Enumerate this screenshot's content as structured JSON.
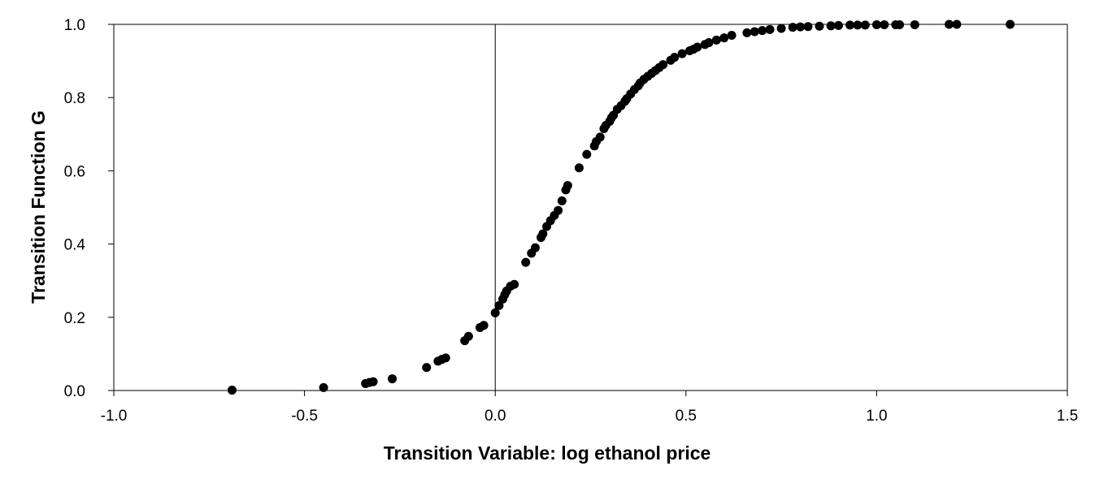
{
  "chart_data": {
    "type": "scatter",
    "title": "",
    "xlabel": "Transition Variable: log ethanol price",
    "ylabel": "Transition Function G",
    "xlim": [
      -1.0,
      1.5
    ],
    "ylim": [
      0.0,
      1.0
    ],
    "x_ticks": [
      -1.0,
      -0.5,
      0.0,
      0.5,
      1.0,
      1.5
    ],
    "x_tick_labels": [
      "-1.0",
      "-0.5",
      "0.0",
      "0.5",
      "1.0",
      "1.5"
    ],
    "y_ticks": [
      0.0,
      0.2,
      0.4,
      0.6,
      0.8,
      1.0
    ],
    "y_tick_labels": [
      "0.0",
      "0.2",
      "0.4",
      "0.6",
      "0.8",
      "1.0"
    ],
    "grid": false,
    "legend": "none",
    "vertical_reference_line_at_x": 0.0,
    "marker_color": "#000000",
    "series": [
      {
        "x": [
          -0.69,
          -0.45,
          -0.34,
          -0.33,
          -0.32,
          -0.27,
          -0.18,
          -0.15,
          -0.14,
          -0.13,
          -0.08,
          -0.07,
          -0.04,
          -0.03,
          0.0,
          0.01,
          0.02,
          0.025,
          0.03,
          0.04,
          0.05,
          0.08,
          0.095,
          0.105,
          0.12,
          0.125,
          0.135,
          0.145,
          0.155,
          0.165,
          0.175,
          0.185,
          0.19,
          0.22,
          0.24,
          0.26,
          0.265,
          0.275,
          0.285,
          0.29,
          0.3,
          0.305,
          0.31,
          0.32,
          0.33,
          0.34,
          0.345,
          0.355,
          0.365,
          0.375,
          0.38,
          0.39,
          0.4,
          0.41,
          0.42,
          0.43,
          0.44,
          0.46,
          0.47,
          0.49,
          0.51,
          0.52,
          0.53,
          0.55,
          0.56,
          0.58,
          0.6,
          0.62,
          0.66,
          0.68,
          0.7,
          0.72,
          0.75,
          0.78,
          0.8,
          0.82,
          0.85,
          0.88,
          0.9,
          0.93,
          0.95,
          0.97,
          1.0,
          1.02,
          1.05,
          1.06,
          1.1,
          1.19,
          1.21,
          1.35
        ],
        "y": [
          0.001,
          0.008,
          0.019,
          0.022,
          0.024,
          0.032,
          0.063,
          0.08,
          0.085,
          0.089,
          0.136,
          0.148,
          0.172,
          0.178,
          0.212,
          0.232,
          0.25,
          0.262,
          0.272,
          0.285,
          0.29,
          0.35,
          0.375,
          0.39,
          0.418,
          0.428,
          0.448,
          0.464,
          0.478,
          0.492,
          0.518,
          0.548,
          0.56,
          0.608,
          0.645,
          0.668,
          0.68,
          0.692,
          0.715,
          0.724,
          0.735,
          0.745,
          0.752,
          0.768,
          0.778,
          0.79,
          0.797,
          0.81,
          0.822,
          0.832,
          0.84,
          0.85,
          0.858,
          0.866,
          0.874,
          0.882,
          0.89,
          0.902,
          0.91,
          0.92,
          0.928,
          0.932,
          0.938,
          0.945,
          0.95,
          0.957,
          0.963,
          0.97,
          0.977,
          0.98,
          0.983,
          0.986,
          0.989,
          0.992,
          0.993,
          0.994,
          0.995,
          0.996,
          0.997,
          0.998,
          0.998,
          0.998,
          0.999,
          0.999,
          0.999,
          0.999,
          0.999,
          1.0,
          1.0,
          1.0
        ]
      }
    ]
  }
}
